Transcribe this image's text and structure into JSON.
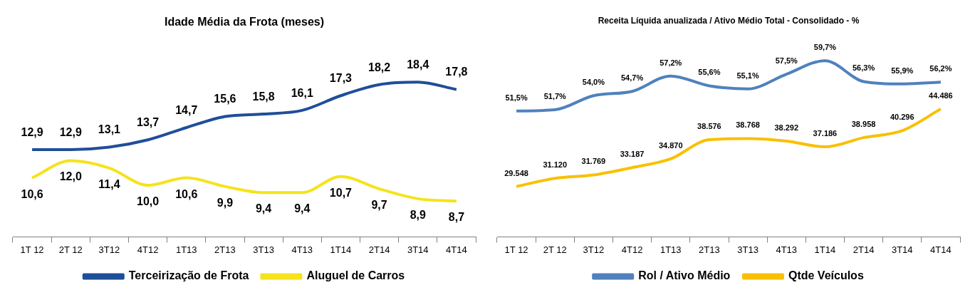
{
  "chart_data": [
    {
      "type": "line",
      "title": "Idade Média da Frota (meses)",
      "categories": [
        "1T 12",
        "2T 12",
        "3T12",
        "4T12",
        "1T13",
        "2T13",
        "3T13",
        "4T13",
        "1T14",
        "2T14",
        "3T14",
        "4T14"
      ],
      "legend": "bottom",
      "grid": false,
      "marker": "none",
      "series": [
        {
          "name": "Terceirização de Frota",
          "color": "#1f4e9a",
          "values": [
            12.9,
            12.9,
            13.1,
            13.7,
            14.7,
            15.6,
            15.8,
            16.1,
            17.3,
            18.2,
            18.4,
            17.8
          ],
          "value_labels": [
            "12,9",
            "12,9",
            "13,1",
            "13,7",
            "14,7",
            "15,6",
            "15,8",
            "16,1",
            "17,3",
            "18,2",
            "18,4",
            "17,8"
          ]
        },
        {
          "name": "Aluguel de Carros",
          "color": "#f5e31c",
          "values": [
            10.6,
            12.0,
            11.4,
            10.0,
            10.6,
            9.9,
            9.4,
            9.4,
            10.7,
            9.7,
            8.9,
            8.7
          ],
          "value_labels": [
            "10,6",
            "12,0",
            "11,4",
            "10,0",
            "10,6",
            "9,9",
            "9,4",
            "9,4",
            "10,7",
            "9,7",
            "8,9",
            "8,7"
          ]
        }
      ]
    },
    {
      "type": "line",
      "title": "Receita Líquida anualizada / Ativo Médio Total - Consolidado - %",
      "categories": [
        "1T 12",
        "2T 12",
        "3T12",
        "4T12",
        "1T13",
        "2T13",
        "3T13",
        "4T13",
        "1T14",
        "2T14",
        "3T14",
        "4T14"
      ],
      "legend": "bottom",
      "grid": false,
      "marker": "none",
      "series": [
        {
          "name": "Rol / Ativo Médio",
          "color": "#4f81bd",
          "values": [
            51.5,
            51.7,
            54.0,
            54.7,
            57.2,
            55.6,
            55.1,
            57.5,
            59.7,
            56.3,
            55.9,
            56.2
          ],
          "value_labels": [
            "51,5%",
            "51,7%",
            "54,0%",
            "54,7%",
            "57,2%",
            "55,6%",
            "55,1%",
            "57,5%",
            "59,7%",
            "56,3%",
            "55,9%",
            "56,2%"
          ]
        },
        {
          "name": "Qtde Veículos",
          "color": "#f9c000",
          "axis": "y2",
          "values": [
            29548,
            31120,
            31769,
            33187,
            34870,
            38576,
            38768,
            38292,
            37186,
            38958,
            40296,
            44486
          ],
          "value_labels": [
            "29.548",
            "31.120",
            "31.769",
            "33.187",
            "34.870",
            "38.576",
            "38.768",
            "38.292",
            "37.186",
            "38.958",
            "40.296",
            "44.486"
          ]
        }
      ]
    }
  ]
}
